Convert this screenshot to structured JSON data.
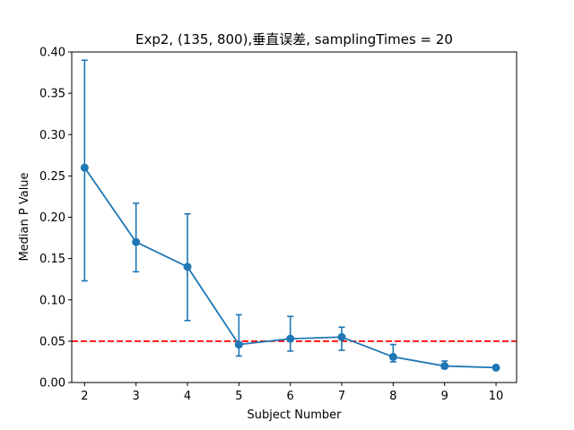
{
  "chart_data": {
    "type": "line",
    "title": "Exp2, (135, 800),垂直误差, samplingTimes = 20",
    "xlabel": "Subject Number",
    "ylabel": "Median P Value",
    "xlim": [
      1.75,
      10.4
    ],
    "ylim": [
      0.0,
      0.4
    ],
    "xticks": [
      2,
      3,
      4,
      5,
      6,
      7,
      8,
      9,
      10
    ],
    "yticks": [
      0.0,
      0.05,
      0.1,
      0.15,
      0.2,
      0.25,
      0.3,
      0.35,
      0.4
    ],
    "ytick_labels": [
      "0.00",
      "0.05",
      "0.10",
      "0.15",
      "0.20",
      "0.25",
      "0.30",
      "0.35",
      "0.40"
    ],
    "grid": false,
    "series": [
      {
        "color": "#1f77b4",
        "x": [
          2,
          3,
          4,
          5,
          6,
          7,
          8,
          9,
          10
        ],
        "y": [
          0.26,
          0.17,
          0.14,
          0.046,
          0.053,
          0.055,
          0.031,
          0.02,
          0.018
        ],
        "err_low": [
          0.123,
          0.134,
          0.075,
          0.032,
          0.038,
          0.039,
          0.025,
          0.017,
          0.016
        ],
        "err_high": [
          0.39,
          0.217,
          0.204,
          0.082,
          0.08,
          0.067,
          0.046,
          0.026,
          0.02
        ]
      }
    ],
    "reference_line": {
      "y": 0.05,
      "color": "#ff0000",
      "style": "dashed"
    }
  }
}
